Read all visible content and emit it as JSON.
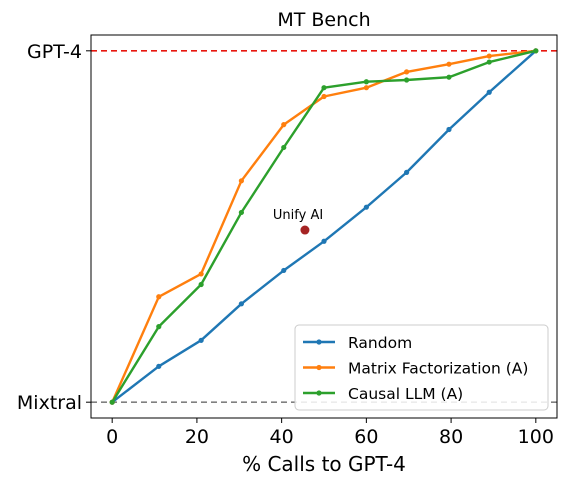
{
  "chart_data": {
    "type": "line",
    "title": "MT Bench",
    "xlabel": "% Calls to GPT-4",
    "ylabel": "",
    "xlim": [
      -5,
      105
    ],
    "ylim": [
      -0.045,
      1.045
    ],
    "x_ticks": [
      0,
      20,
      40,
      60,
      80,
      100
    ],
    "x_tick_labels": [
      "0",
      "20",
      "40",
      "60",
      "80",
      "100"
    ],
    "y_ticks": [
      0,
      1
    ],
    "y_tick_labels": [
      "Mixtral",
      "GPT-4"
    ],
    "reference_lines": [
      {
        "y": 1,
        "color": "#e8170f",
        "style": "dashed"
      },
      {
        "y": 0,
        "color": "#808080",
        "style": "dashed"
      }
    ],
    "series": [
      {
        "name": "Random",
        "color": "#1f77b4",
        "x": [
          0,
          11,
          21,
          30.5,
          40.5,
          50,
          60,
          69.5,
          79.5,
          89,
          100
        ],
        "y": [
          0,
          0.102,
          0.176,
          0.28,
          0.375,
          0.458,
          0.555,
          0.654,
          0.776,
          0.882,
          1
        ]
      },
      {
        "name": "Matrix Factorization (A)",
        "color": "#ff7f0e",
        "x": [
          0,
          11,
          21,
          30.5,
          40.5,
          50,
          60,
          69.5,
          79.5,
          89,
          100
        ],
        "y": [
          0,
          0.3,
          0.365,
          0.63,
          0.79,
          0.87,
          0.895,
          0.94,
          0.962,
          0.985,
          1
        ]
      },
      {
        "name": "Causal LLM (A)",
        "color": "#2ca02c",
        "x": [
          0,
          11,
          21,
          30.5,
          40.5,
          50,
          60,
          69.5,
          79.5,
          89,
          100
        ],
        "y": [
          0,
          0.215,
          0.335,
          0.54,
          0.725,
          0.895,
          0.912,
          0.917,
          0.925,
          0.968,
          1
        ]
      }
    ],
    "annotations": [
      {
        "label": "Unify AI",
        "x": 45.5,
        "y": 0.49,
        "color": "#a52424"
      }
    ],
    "legend_position": "lower-right",
    "grid": false
  }
}
